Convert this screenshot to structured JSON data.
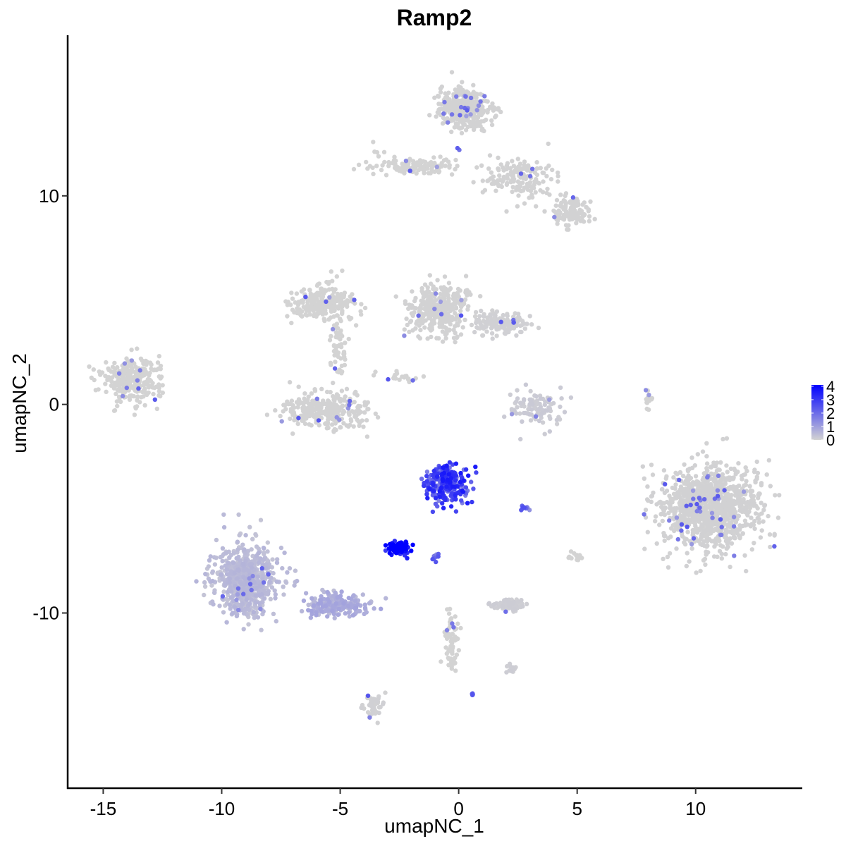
{
  "chart_data": {
    "type": "scatter",
    "title": "Ramp2",
    "xlabel": "umapNC_1",
    "ylabel": "umapNC_2",
    "xlim": [
      -16.5,
      14.5
    ],
    "ylim": [
      -18.4,
      17.7
    ],
    "x_ticks": [
      -15,
      -10,
      -5,
      0,
      5,
      10
    ],
    "x_tick_labels": [
      "-15",
      "-10",
      "-5",
      "0",
      "5",
      "10"
    ],
    "y_ticks": [
      -10,
      0,
      10
    ],
    "y_tick_labels": [
      "-10",
      "0",
      "10"
    ],
    "grid": false,
    "color_scale": {
      "name": "",
      "low_color": "#d3d3d3",
      "high_color": "#0000ff",
      "min": 0,
      "max": 4.1,
      "breaks": [
        0,
        1,
        2,
        3,
        4
      ],
      "break_labels": [
        "0",
        "1",
        "2",
        "3",
        "4"
      ],
      "placement": "right"
    },
    "clusters": [
      {
        "center": [
          0.2,
          14.2
        ],
        "spread": [
          0.9,
          0.9
        ],
        "n": 420,
        "expr": 0.02
      },
      {
        "center": [
          -1.8,
          11.4
        ],
        "spread": [
          1.6,
          0.35
        ],
        "n": 120,
        "expr": 0.0
      },
      {
        "center": [
          2.6,
          10.8
        ],
        "spread": [
          1.3,
          0.9
        ],
        "n": 160,
        "expr": 0.02
      },
      {
        "center": [
          4.8,
          9.3
        ],
        "spread": [
          0.8,
          0.6
        ],
        "n": 120,
        "expr": 0.02
      },
      {
        "center": [
          -5.7,
          4.9
        ],
        "spread": [
          1.2,
          0.7
        ],
        "n": 240,
        "expr": 0.0
      },
      {
        "center": [
          -5.1,
          2.9
        ],
        "spread": [
          0.35,
          1.6
        ],
        "n": 60,
        "expr": 0.0
      },
      {
        "center": [
          -0.9,
          4.5
        ],
        "spread": [
          1.2,
          1.2
        ],
        "n": 320,
        "expr": 0.02
      },
      {
        "center": [
          1.8,
          3.9
        ],
        "spread": [
          1.1,
          0.5
        ],
        "n": 140,
        "expr": 0.05
      },
      {
        "center": [
          -5.7,
          -0.3
        ],
        "spread": [
          1.7,
          0.8
        ],
        "n": 300,
        "expr": 0.02
      },
      {
        "center": [
          -13.8,
          1.2
        ],
        "spread": [
          1.1,
          0.9
        ],
        "n": 320,
        "expr": 0.0
      },
      {
        "center": [
          3.2,
          -0.2
        ],
        "spread": [
          1.0,
          0.8
        ],
        "n": 110,
        "expr": 0.15
      },
      {
        "center": [
          10.6,
          -4.9
        ],
        "spread": [
          1.8,
          1.8
        ],
        "n": 1100,
        "expr": 0.03
      },
      {
        "center": [
          -0.5,
          -3.8
        ],
        "spread": [
          0.8,
          0.8
        ],
        "n": 260,
        "expr": 2.7
      },
      {
        "center": [
          -2.5,
          -6.9
        ],
        "spread": [
          0.35,
          0.3
        ],
        "n": 110,
        "expr": 3.9
      },
      {
        "center": [
          -9.0,
          -8.4
        ],
        "spread": [
          1.2,
          1.5
        ],
        "n": 700,
        "expr": 0.45
      },
      {
        "center": [
          -5.2,
          -9.6
        ],
        "spread": [
          1.1,
          0.45
        ],
        "n": 220,
        "expr": 0.7
      },
      {
        "center": [
          2.2,
          -9.6
        ],
        "spread": [
          0.55,
          0.25
        ],
        "n": 90,
        "expr": 0.1
      },
      {
        "center": [
          -3.6,
          -14.4
        ],
        "spread": [
          0.35,
          0.6
        ],
        "n": 50,
        "expr": 0.05
      },
      {
        "center": [
          -0.3,
          -11.3
        ],
        "spread": [
          0.25,
          1.2
        ],
        "n": 70,
        "expr": 0.0
      },
      {
        "center": [
          8.0,
          0.2
        ],
        "spread": [
          0.15,
          0.5
        ],
        "n": 20,
        "expr": 0.0
      },
      {
        "center": [
          -0.9,
          -7.3
        ],
        "spread": [
          0.2,
          0.2
        ],
        "n": 10,
        "expr": 2.0
      },
      {
        "center": [
          2.8,
          -5.0
        ],
        "spread": [
          0.2,
          0.1
        ],
        "n": 10,
        "expr": 2.0
      },
      {
        "center": [
          5.0,
          -7.3
        ],
        "spread": [
          0.3,
          0.2
        ],
        "n": 15,
        "expr": 0.0
      },
      {
        "center": [
          2.3,
          -12.6
        ],
        "spread": [
          0.3,
          0.3
        ],
        "n": 15,
        "expr": 0.1
      },
      {
        "center": [
          0.6,
          -13.9
        ],
        "spread": [
          0.1,
          0.1
        ],
        "n": 6,
        "expr": 2.0
      },
      {
        "center": [
          -2.5,
          1.3
        ],
        "spread": [
          0.8,
          0.3
        ],
        "n": 20,
        "expr": 0.0
      },
      {
        "center": [
          -3.4,
          12.1
        ],
        "spread": [
          0.3,
          0.4
        ],
        "n": 5,
        "expr": 0.0
      },
      {
        "center": [
          -1.5,
          4.6
        ],
        "spread": [
          0.3,
          0.2
        ],
        "n": 5,
        "expr": 0.0
      }
    ]
  }
}
